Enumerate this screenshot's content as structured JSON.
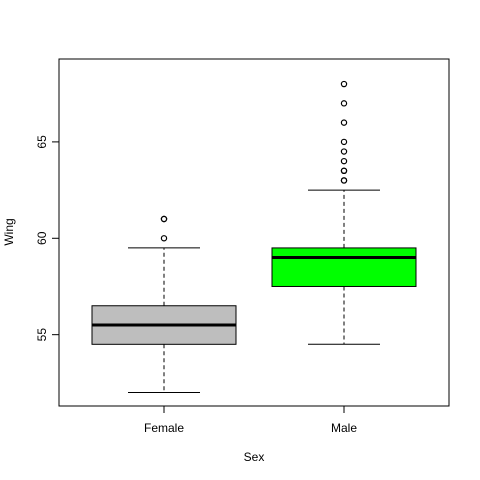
{
  "chart_data": {
    "type": "box",
    "title": "",
    "xlabel": "Sex",
    "ylabel": "Wing",
    "yticks": [
      55,
      60,
      65
    ],
    "ylim": [
      51.3,
      69.3
    ],
    "grid": false,
    "legend": "none",
    "categories": [
      "Female",
      "Male"
    ],
    "boxes": [
      {
        "category": "Female",
        "fill": "#bebebe",
        "whisker_low": 52,
        "q1": 54.5,
        "median": 55.5,
        "q3": 56.5,
        "whisker_high": 59.5,
        "outliers": [
          60,
          61,
          61
        ]
      },
      {
        "category": "Male",
        "fill": "#00ff00",
        "whisker_low": 54.5,
        "q1": 57.5,
        "median": 59,
        "q3": 59.5,
        "whisker_high": 62.5,
        "outliers": [
          63,
          63,
          63.5,
          63.5,
          64,
          64.5,
          65,
          66,
          67,
          68
        ]
      }
    ]
  }
}
